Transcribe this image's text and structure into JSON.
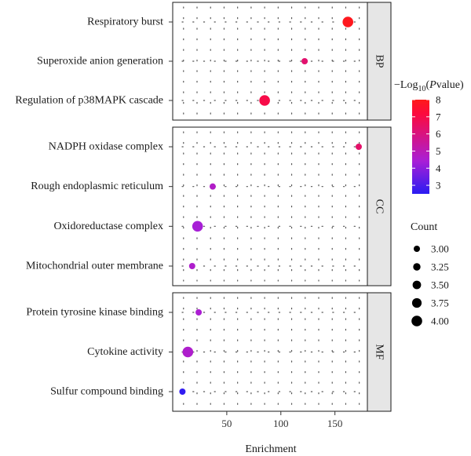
{
  "chart_data": {
    "type": "scatter",
    "xlabel": "Enrichment",
    "x_ticks": [
      50,
      100,
      150
    ],
    "xlim": [
      0,
      180
    ],
    "panels": [
      {
        "label": "BP",
        "terms": [
          {
            "name": "Respiratory burst",
            "enrichment": 162,
            "neg_log10_p": 7.9,
            "count": 4.0
          },
          {
            "name": "Superoxide anion generation",
            "enrichment": 122,
            "neg_log10_p": 6.3,
            "count": 3.0
          },
          {
            "name": "Regulation of p38MAPK cascade",
            "enrichment": 85,
            "neg_log10_p": 7.0,
            "count": 4.0
          }
        ]
      },
      {
        "label": "CC",
        "terms": [
          {
            "name": "NADPH oxidase complex",
            "enrichment": 172,
            "neg_log10_p": 6.4,
            "count": 3.0
          },
          {
            "name": "Rough endoplasmic reticulum",
            "enrichment": 37,
            "neg_log10_p": 4.7,
            "count": 3.0
          },
          {
            "name": "Oxidoreductase complex",
            "enrichment": 23,
            "neg_log10_p": 4.4,
            "count": 4.0
          },
          {
            "name": "Mitochondrial outer membrane",
            "enrichment": 18,
            "neg_log10_p": 4.6,
            "count": 3.0
          }
        ]
      },
      {
        "label": "MF",
        "terms": [
          {
            "name": "Protein tyrosine kinase binding",
            "enrichment": 24,
            "neg_log10_p": 4.5,
            "count": 3.0
          },
          {
            "name": "Cytokine activity",
            "enrichment": 14,
            "neg_log10_p": 4.6,
            "count": 4.0
          },
          {
            "name": "Sulfur compound binding",
            "enrichment": 9,
            "neg_log10_p": 2.6,
            "count": 3.0
          }
        ]
      }
    ],
    "color_legend": {
      "title_prefix": "−Log",
      "title_subscript": "10",
      "title_open": "(",
      "title_italic": "P",
      "title_suffix": "value)",
      "ticks": [
        3,
        4,
        5,
        6,
        7,
        8
      ],
      "range": [
        2.5,
        8.0
      ],
      "colors": [
        "#2a1cf2",
        "#a91fd6",
        "#fc0a3e",
        "#fe1a1a"
      ]
    },
    "size_legend": {
      "title": "Count",
      "values": [
        "3.00",
        "3.25",
        "3.50",
        "3.75",
        "4.00"
      ]
    },
    "grid": true,
    "facet_strip_color": "#e6e6e6"
  }
}
